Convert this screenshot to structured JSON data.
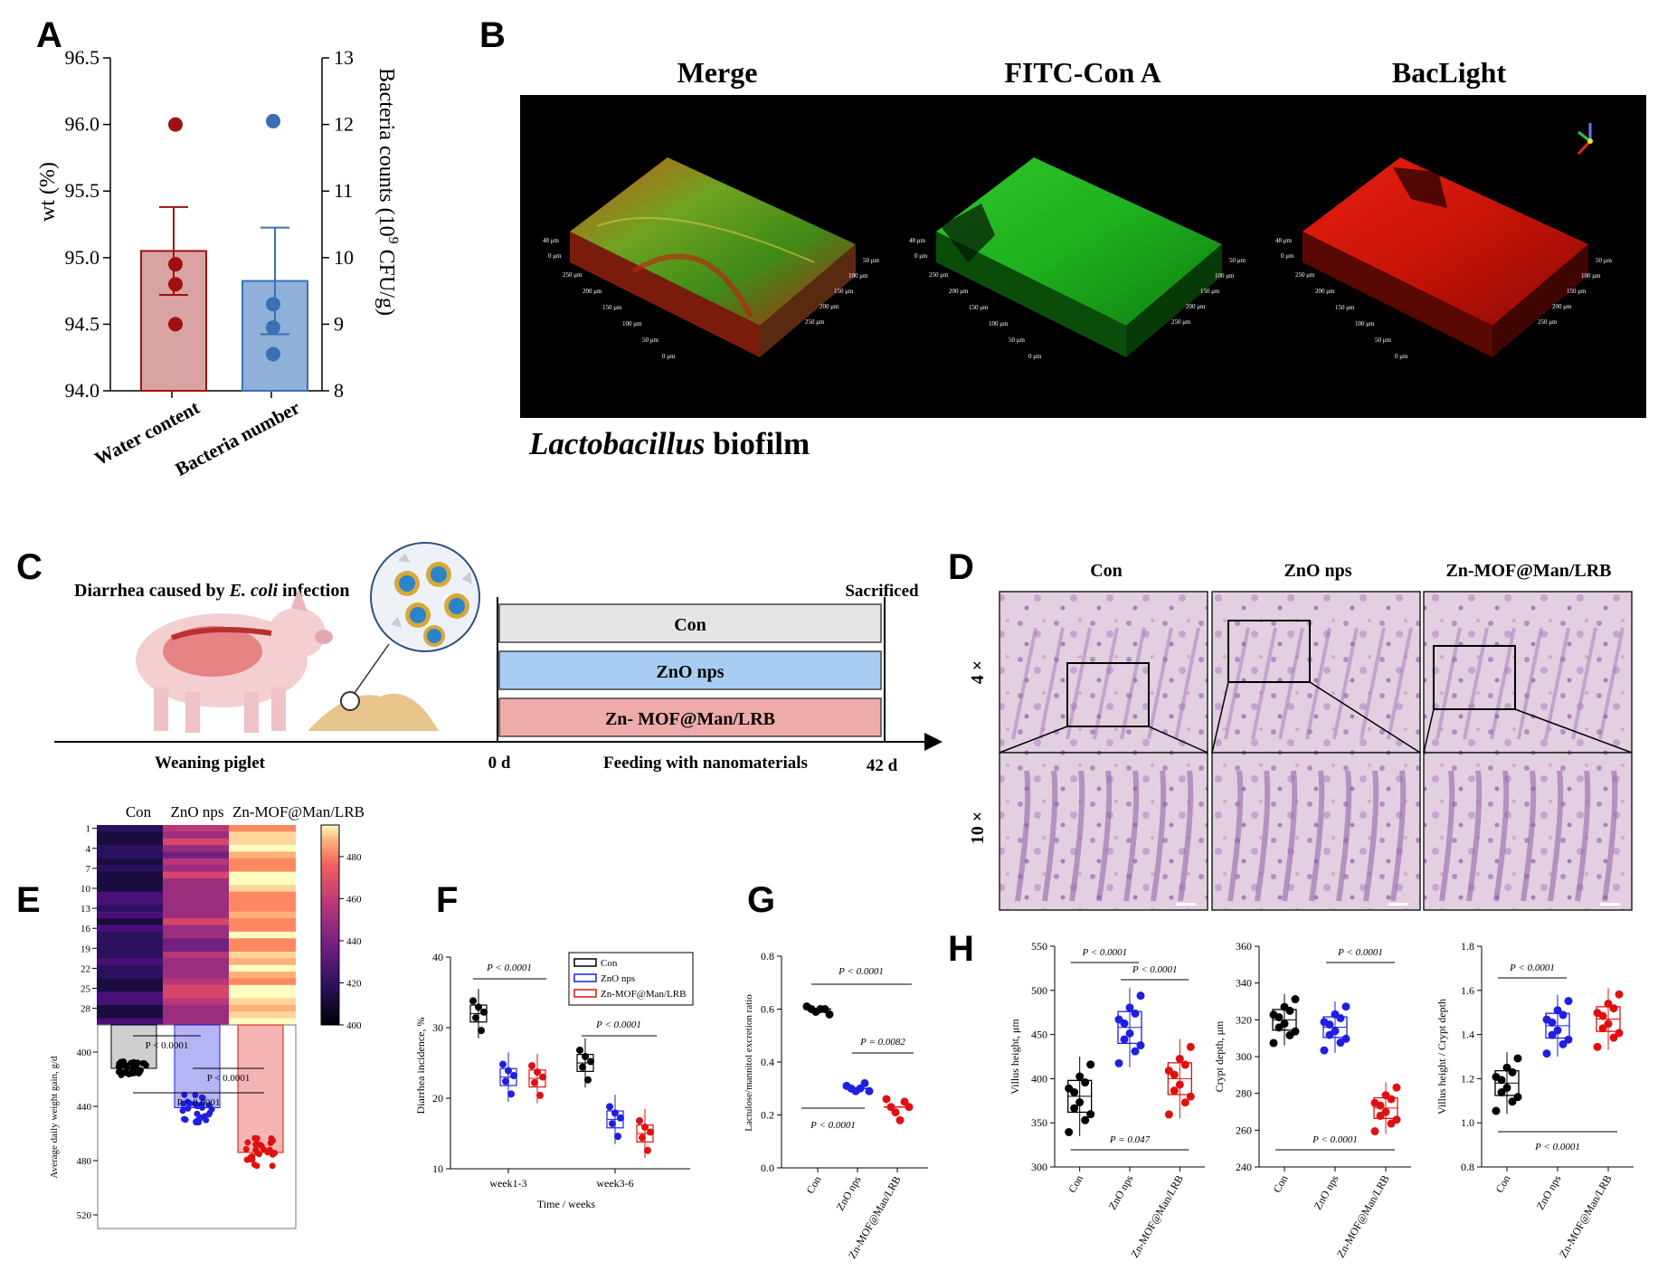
{
  "panels": {
    "a": {
      "label": "A",
      "y_left_label": "wt (%)",
      "y_right_label": "Bacteria counts (10",
      "y_right_sup": "9",
      "y_right_tail": " CFU/g)",
      "left_ticks": [
        "94.0",
        "94.5",
        "95.0",
        "95.5",
        "96.0",
        "96.5"
      ],
      "right_ticks": [
        "8",
        "9",
        "10",
        "11",
        "12",
        "13"
      ],
      "categories": [
        "Water content",
        "Bacteria number"
      ]
    },
    "b": {
      "label": "B",
      "titles": [
        "Merge",
        "FITC-Con A",
        "BacLight"
      ],
      "caption_italic": "Lactobacillus",
      "caption_rest": " biofilm",
      "axis_ticks": [
        "48 μm",
        "0 μm",
        "250 μm",
        "200 μm",
        "150 μm",
        "100 μm",
        "50 μm",
        "0 μm",
        "50 μm",
        "100 μm",
        "150 μm",
        "200 μm",
        "250 μm"
      ]
    },
    "c": {
      "label": "C",
      "header_pre": "Diarrhea caused by ",
      "header_ital": "E. coli",
      "header_post": " infection",
      "sacrificed": "Sacrificed",
      "groups": [
        "Con",
        "ZnO nps",
        "Zn- MOF@Man/LRB"
      ],
      "weaning": "Weaning piglet",
      "day0": "0 d",
      "feeding": "Feeding with nanomaterials",
      "day42": "42 d"
    },
    "d": {
      "label": "D",
      "columns": [
        "Con",
        "ZnO nps",
        "Zn-MOF@Man/LRB"
      ],
      "rows": [
        "4 ×",
        "10 ×"
      ]
    },
    "e": {
      "label": "E",
      "columns": [
        "Con",
        "ZnO nps",
        "Zn-MOF@Man/LRB"
      ],
      "row_ticks": [
        "1",
        "4",
        "7",
        "10",
        "13",
        "16",
        "19",
        "22",
        "25",
        "28"
      ],
      "colorbar_ticks": [
        "480",
        "460",
        "440",
        "420",
        "400"
      ],
      "ylabel": "Average daily weight gain, g/d",
      "y_ticks": [
        "400",
        "440",
        "480",
        "520"
      ],
      "p_values": [
        "P < 0.0001",
        "P < 0.0001",
        "P < 0.0001"
      ]
    },
    "f": {
      "label": "F",
      "ylabel": "Diarrhea incidence, %",
      "xlabel": "Time / weeks",
      "legend": [
        "Con",
        "ZnO nps",
        "Zn-MOF@Man/LRB"
      ],
      "p_values": [
        "P < 0.0001",
        "P < 0.0001"
      ]
    },
    "g": {
      "label": "G",
      "ylabel": "Lactulose/mannitol excretion ratio",
      "p_values": [
        "P < 0.0001",
        "P = 0.0082",
        "P < 0.0001"
      ]
    },
    "h": {
      "label": "H",
      "p_values_1": [
        "P < 0.0001",
        "P < 0.0001",
        "P = 0.047"
      ],
      "p_values_2": [
        "P < 0.0001",
        "P < 0.0001"
      ],
      "p_values_3": [
        "P < 0.0001",
        "P < 0.0001"
      ]
    }
  },
  "chart_data": [
    {
      "type": "bar",
      "categories": [
        "Water content",
        "Bacteria number"
      ],
      "series": [
        {
          "axis": "left",
          "values": [
            95.05,
            null
          ],
          "error": [
            0.33,
            null
          ],
          "points": [
            [
              96.0,
              94.95,
              94.8,
              94.5
            ]
          ]
        },
        {
          "axis": "right",
          "values": [
            null,
            9.65
          ],
          "error": [
            null,
            0.8
          ],
          "points": [
            [
              12.05,
              9.3,
              8.95,
              8.55
            ]
          ]
        }
      ],
      "ylabel": "wt (%)",
      "ylabel_right": "Bacteria counts (10^9 CFU/g)",
      "ylim": [
        94.0,
        96.5
      ],
      "ylim_right": [
        8,
        13
      ],
      "colors": [
        "#a01010",
        "#3b6fb5"
      ]
    },
    {
      "type": "heatmap",
      "categories": [
        "Con",
        "ZnO nps",
        "Zn-MOF@Man/LRB"
      ],
      "rows": [
        "1",
        "4",
        "7",
        "10",
        "13",
        "16",
        "19",
        "22",
        "25",
        "28"
      ],
      "colorbar_range": [
        400,
        495
      ],
      "colormap": "magma"
    },
    {
      "type": "bar",
      "categories": [
        "Con",
        "ZnO nps",
        "Zn-MOF@Man/LRB"
      ],
      "values": [
        412,
        441,
        474
      ],
      "ylabel": "Average daily weight gain, g/d",
      "ylim": [
        380,
        530
      ],
      "inverted": true,
      "colors": [
        "#000000",
        "#1f1fe0",
        "#e01010"
      ]
    },
    {
      "type": "box",
      "categories": [
        "week1-3",
        "week3-6"
      ],
      "series": [
        {
          "name": "Con",
          "values": [
            32.0,
            25.0
          ]
        },
        {
          "name": "ZnO nps",
          "values": [
            23.0,
            17.0
          ]
        },
        {
          "name": "Zn-MOF@Man/LRB",
          "values": [
            22.8,
            15.0
          ]
        }
      ],
      "ylabel": "Diarrhea incidence, %",
      "xlabel": "Time / weeks",
      "ylim": [
        10,
        40
      ],
      "yticks": [
        10,
        20,
        30,
        40
      ],
      "legend": "top-right"
    },
    {
      "type": "scatter",
      "categories": [
        "Con",
        "ZnO nps",
        "Zn-MOF@Man/LRB"
      ],
      "values": [
        0.6,
        0.3,
        0.23
      ],
      "points": [
        [
          0.61,
          0.6,
          0.59,
          0.6,
          0.6,
          0.58
        ],
        [
          0.31,
          0.3,
          0.29,
          0.3,
          0.32,
          0.29
        ],
        [
          0.26,
          0.23,
          0.21,
          0.18,
          0.25,
          0.23
        ]
      ],
      "ylabel": "Lactulose/mannitol excretion ratio",
      "ylim": [
        0.0,
        0.8
      ],
      "yticks": [
        0.0,
        0.2,
        0.4,
        0.6,
        0.8
      ]
    },
    {
      "type": "box",
      "categories": [
        "Con",
        "ZnO nps",
        "Zn-MOF@Man/LRB"
      ],
      "values": [
        380,
        458,
        400
      ],
      "ylabel": "Villus height, μm",
      "ylim": [
        300,
        550
      ],
      "yticks": [
        300,
        350,
        400,
        450,
        500,
        550
      ]
    },
    {
      "type": "box",
      "categories": [
        "Con",
        "ZnO nps",
        "Zn-MOF@Man/LRB"
      ],
      "values": [
        320,
        316,
        272
      ],
      "ylabel": "Crypt depth, μm",
      "ylim": [
        240,
        360
      ],
      "yticks": [
        240,
        260,
        280,
        300,
        320,
        340,
        360
      ]
    },
    {
      "type": "box",
      "categories": [
        "Con",
        "ZnO nps",
        "Zn-MOF@Man/LRB"
      ],
      "values": [
        1.18,
        1.44,
        1.47
      ],
      "ylabel": "Villus height / Crypt depth",
      "ylim": [
        0.8,
        1.8
      ],
      "yticks": [
        0.8,
        1.0,
        1.2,
        1.4,
        1.6,
        1.8
      ]
    }
  ]
}
